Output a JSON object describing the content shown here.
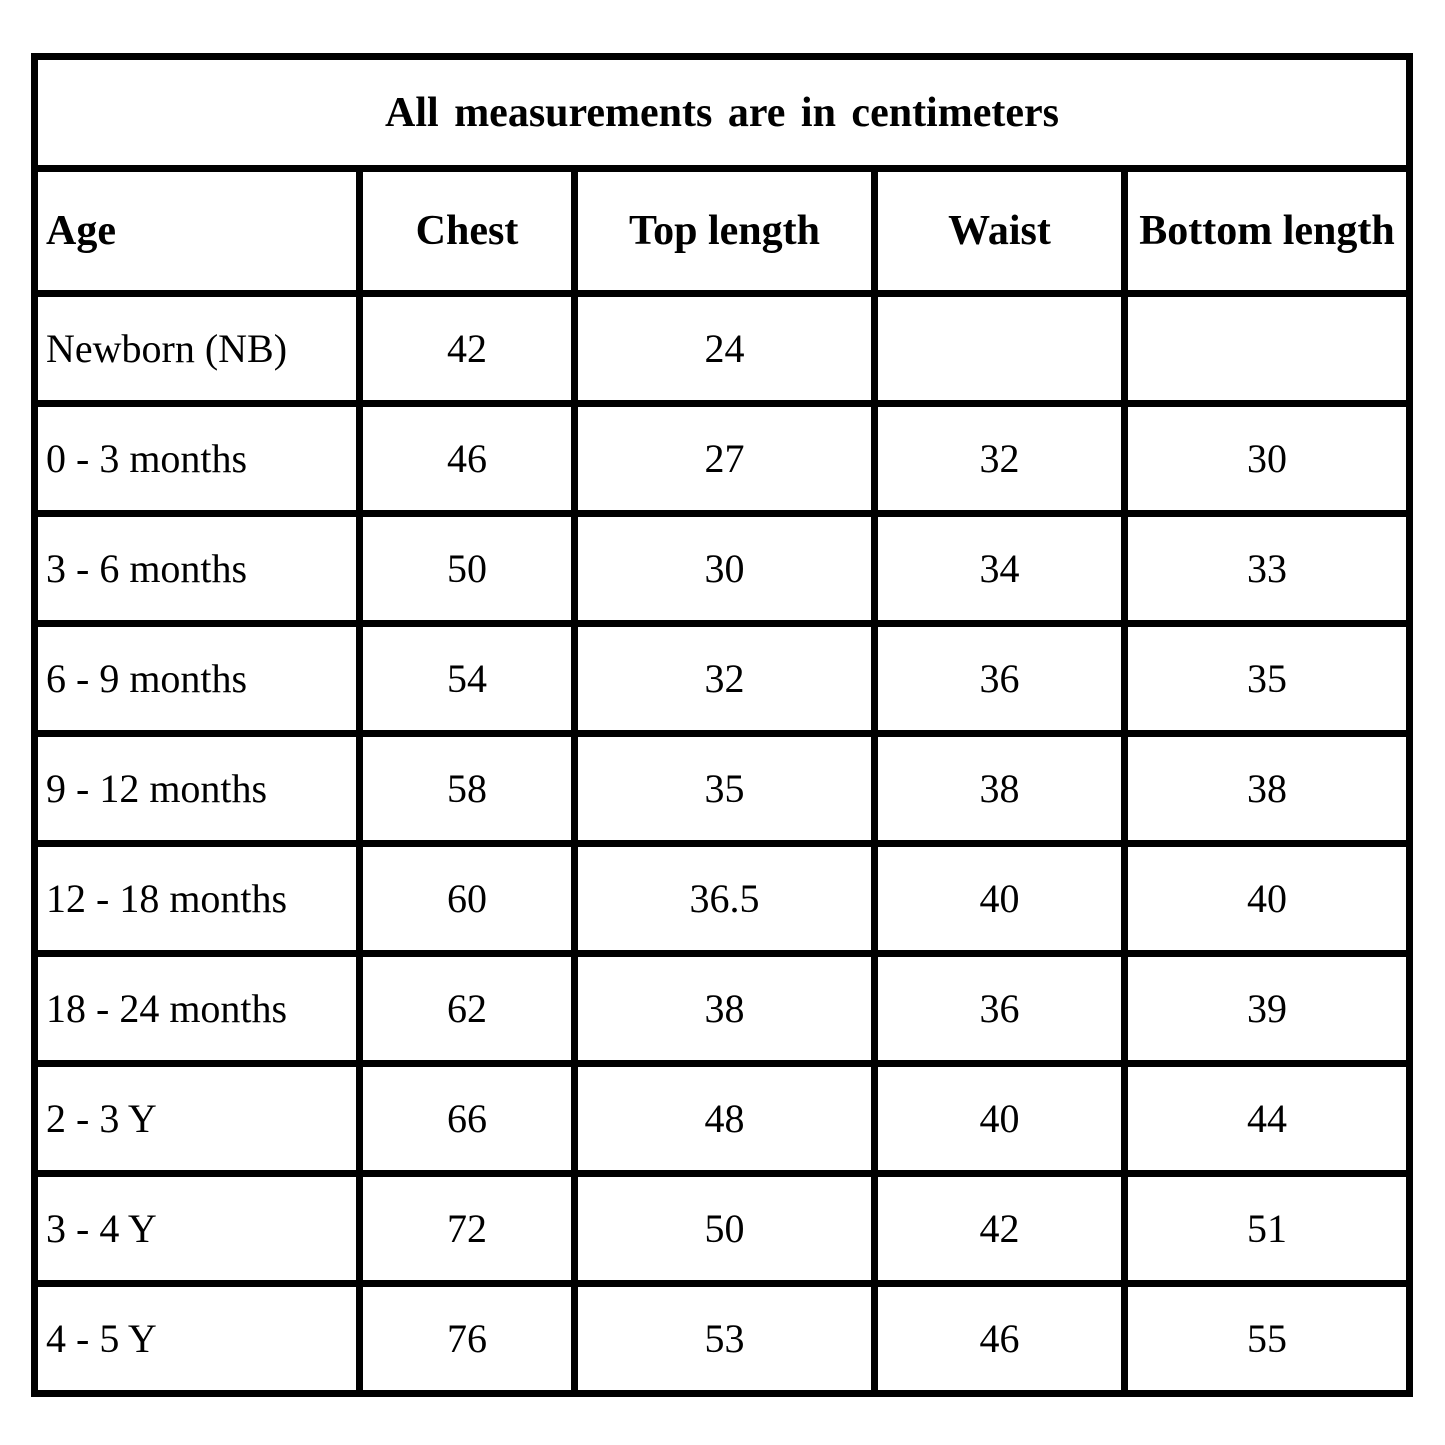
{
  "colors": {
    "border": "#000000",
    "background": "#ffffff",
    "text": "#000000"
  },
  "chart_data": {
    "type": "table",
    "title": "All measurements are in centimeters",
    "units": "centimeters",
    "columns": [
      "Age",
      "Chest",
      "Top length",
      "Waist",
      "Bottom length"
    ],
    "rows": [
      [
        "Newborn (NB)",
        "42",
        "24",
        "",
        ""
      ],
      [
        "0 - 3 months",
        "46",
        "27",
        "32",
        "30"
      ],
      [
        "3 - 6 months",
        "50",
        "30",
        "34",
        "33"
      ],
      [
        "6 - 9 months",
        "54",
        "32",
        "36",
        "35"
      ],
      [
        "9 - 12 months",
        "58",
        "35",
        "38",
        "38"
      ],
      [
        "12 - 18 months",
        "60",
        "36.5",
        "40",
        "40"
      ],
      [
        "18 - 24 months",
        "62",
        "38",
        "36",
        "39"
      ],
      [
        "2 - 3 Y",
        "66",
        "48",
        "40",
        "44"
      ],
      [
        "3 - 4 Y",
        "72",
        "50",
        "42",
        "51"
      ],
      [
        "4 - 5 Y",
        "76",
        "53",
        "46",
        "55"
      ]
    ]
  }
}
